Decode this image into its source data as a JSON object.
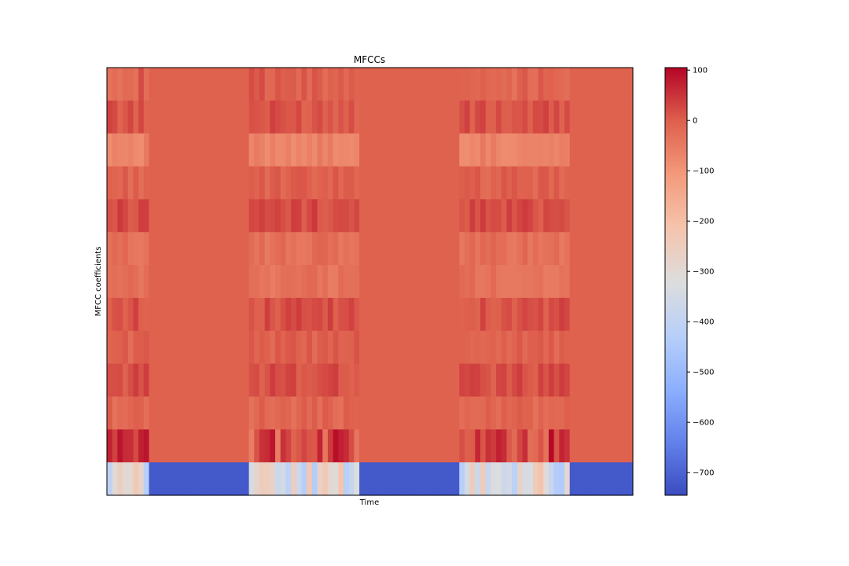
{
  "chart_data": {
    "type": "heatmap",
    "title": "MFCCs",
    "xlabel": "Time",
    "ylabel": "MFCC coefficients",
    "colormap": "coolwarm",
    "color_range": [
      -745,
      105
    ],
    "colorbar_ticks": [
      100,
      0,
      -100,
      -200,
      -300,
      -400,
      -500,
      -600,
      -700
    ],
    "n_coefficients": 13,
    "n_frames": 100,
    "segments": [
      {
        "kind": "speech",
        "start": 0,
        "end": 8
      },
      {
        "kind": "silence",
        "start": 8,
        "end": 27
      },
      {
        "kind": "speech",
        "start": 27,
        "end": 48
      },
      {
        "kind": "silence",
        "start": 48,
        "end": 67
      },
      {
        "kind": "speech",
        "start": 67,
        "end": 88
      },
      {
        "kind": "silence",
        "start": 88,
        "end": 100
      }
    ],
    "silence_values": [
      -5,
      -5,
      -5,
      -5,
      -5,
      -5,
      -5,
      -5,
      -5,
      -5,
      -5,
      -5,
      -720
    ],
    "speech_mean_values": [
      -5,
      12,
      -65,
      -8,
      22,
      -30,
      -35,
      15,
      -5,
      18,
      -15,
      20,
      -330
    ],
    "speech_range_values": [
      30,
      25,
      20,
      20,
      25,
      20,
      20,
      25,
      20,
      25,
      20,
      80,
      120
    ]
  }
}
